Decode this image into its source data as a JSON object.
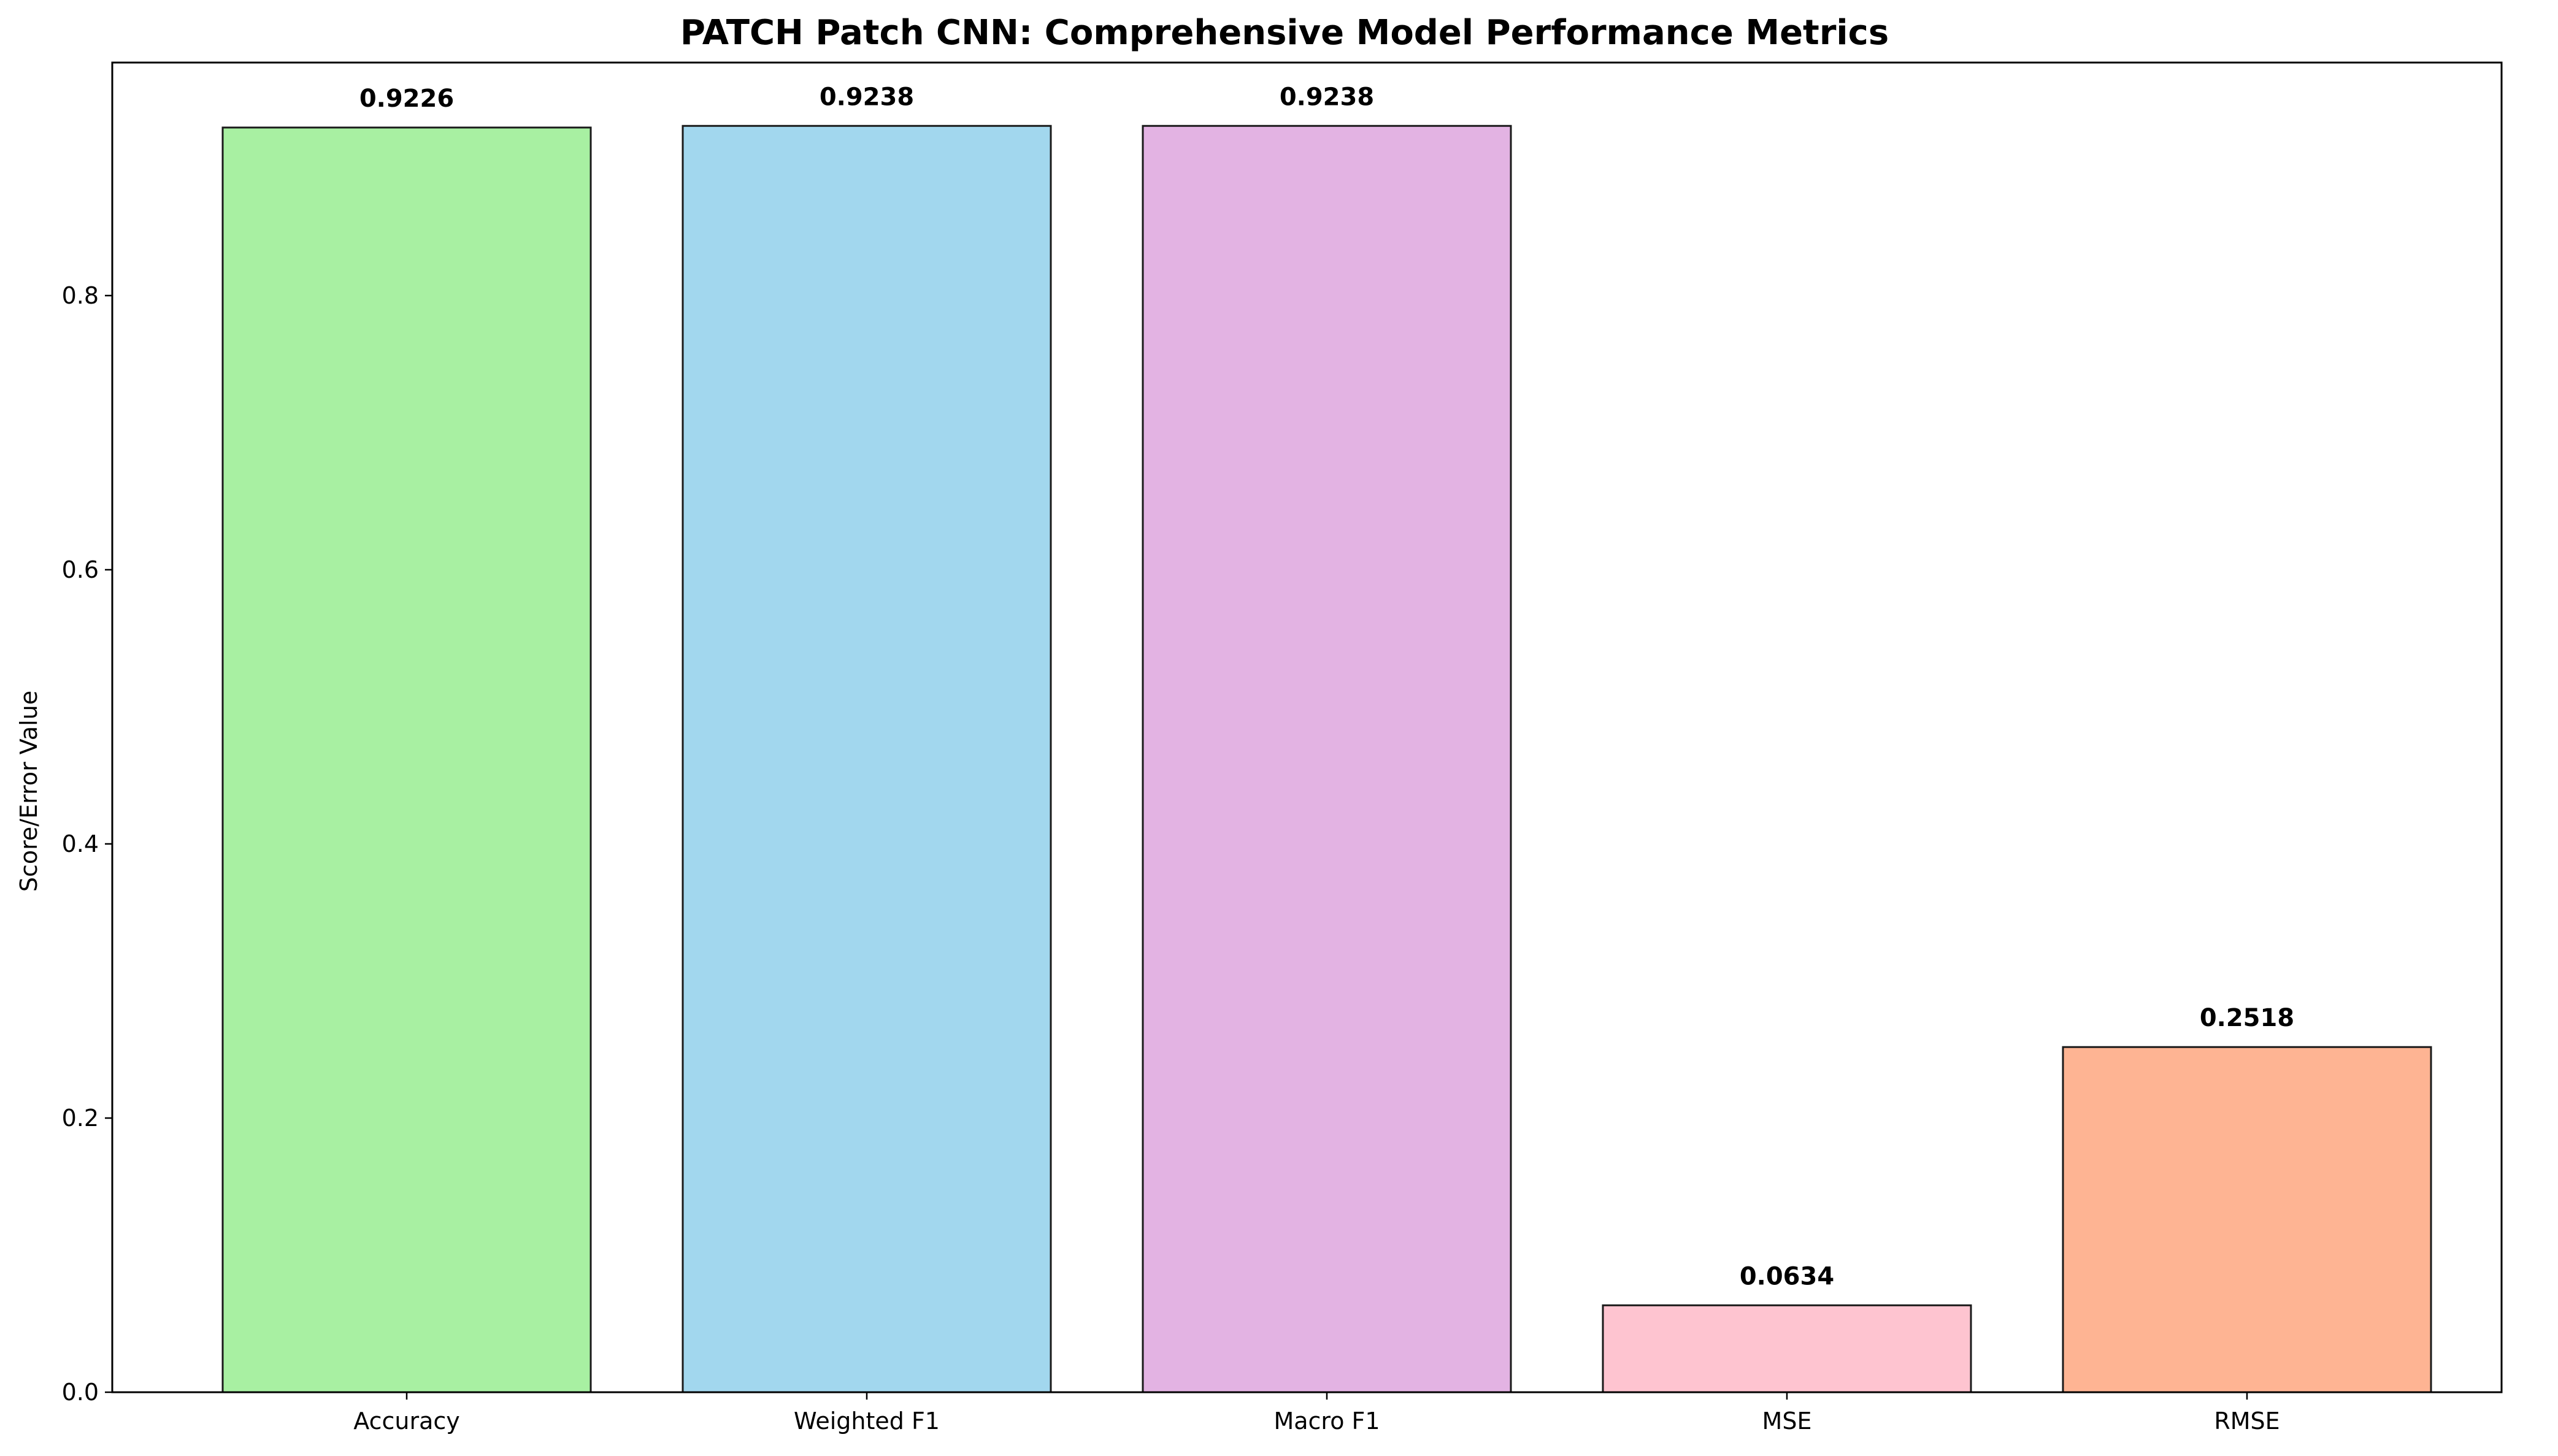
{
  "chart_data": {
    "type": "bar",
    "title": "PATCH Patch CNN: Comprehensive Model Performance Metrics",
    "xlabel": "",
    "ylabel": "Score/Error Value",
    "categories": [
      "Accuracy",
      "Weighted F1",
      "Macro F1",
      "MSE",
      "RMSE"
    ],
    "values": [
      0.9226,
      0.9238,
      0.9238,
      0.0634,
      0.2518
    ],
    "value_labels": [
      "0.9226",
      "0.9238",
      "0.9238",
      "0.0634",
      "0.2518"
    ],
    "colors": [
      "#a8f0a2",
      "#a2d7ee",
      "#e3b3e3",
      "#fec4d0",
      "#feb493"
    ],
    "edge_color": "#1a1a1a",
    "ylim": [
      0,
      0.97
    ],
    "yticks": [
      0.0,
      0.2,
      0.4,
      0.6,
      0.8
    ],
    "ytick_labels": [
      "0.0",
      "0.2",
      "0.4",
      "0.6",
      "0.8"
    ],
    "grid": false,
    "legend": "none"
  }
}
